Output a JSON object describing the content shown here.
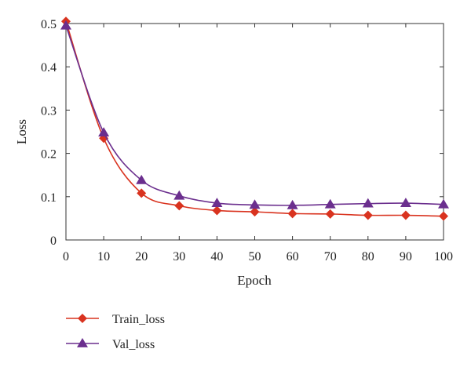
{
  "chart_data": {
    "type": "line",
    "title": "",
    "xlabel": "Epoch",
    "ylabel": "Loss",
    "xlim": [
      0,
      100
    ],
    "ylim": [
      0,
      0.5
    ],
    "x_ticks": [
      0,
      10,
      20,
      30,
      40,
      50,
      60,
      70,
      80,
      90,
      100
    ],
    "y_ticks": [
      0,
      0.1,
      0.2,
      0.3,
      0.4,
      0.5
    ],
    "y_tick_labels": [
      "0",
      "0.1",
      "0.2",
      "0.3",
      "0.4",
      "0.5"
    ],
    "grid": false,
    "legend_position": "bottom-left",
    "x": [
      0,
      10,
      20,
      30,
      40,
      50,
      60,
      70,
      80,
      90,
      100
    ],
    "series": [
      {
        "name": "Train_loss",
        "color": "#d9331f",
        "marker": "diamond",
        "values": [
          0.505,
          0.235,
          0.108,
          0.079,
          0.068,
          0.065,
          0.061,
          0.06,
          0.057,
          0.057,
          0.055
        ]
      },
      {
        "name": "Val_loss",
        "color": "#6b2f8e",
        "marker": "triangle",
        "values": [
          0.495,
          0.248,
          0.138,
          0.102,
          0.085,
          0.081,
          0.08,
          0.082,
          0.084,
          0.085,
          0.082
        ]
      }
    ]
  }
}
